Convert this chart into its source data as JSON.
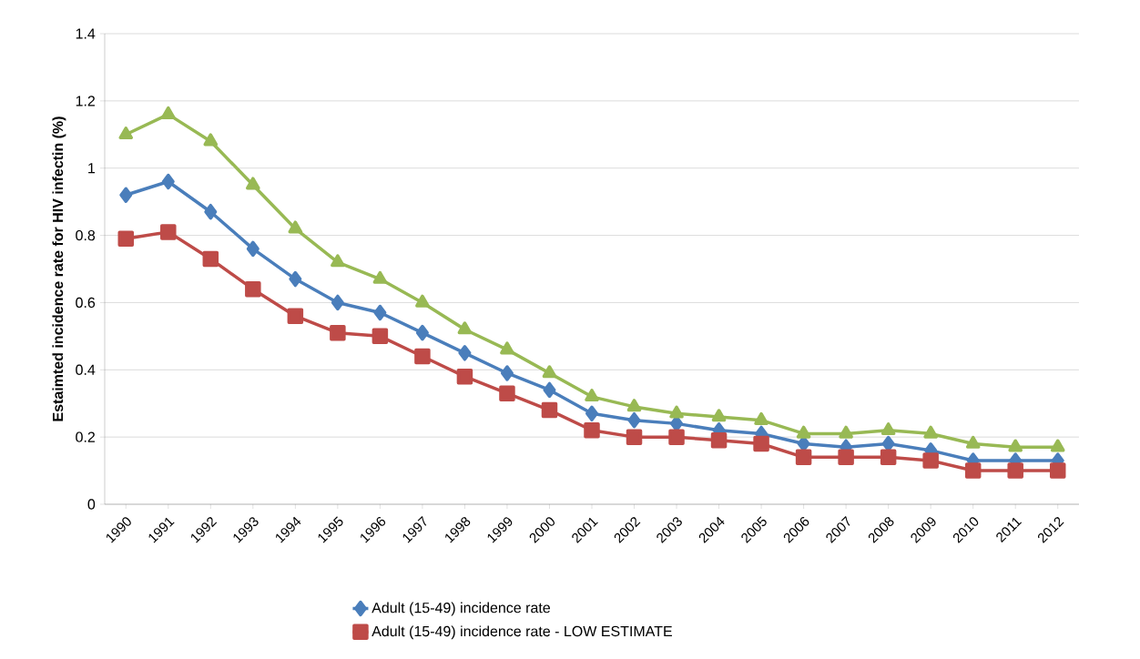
{
  "chart_data": {
    "type": "line",
    "ylabel": "Estaimted incidence rate for HIV infectin (%)",
    "categories": [
      "1990",
      "1991",
      "1992",
      "1993",
      "1994",
      "1995",
      "1996",
      "1997",
      "1998",
      "1999",
      "2000",
      "2001",
      "2002",
      "2003",
      "2004",
      "2005",
      "2006",
      "2007",
      "2008",
      "2009",
      "2010",
      "2011",
      "2012"
    ],
    "series": [
      {
        "name": "Adult (15-49) incidence rate",
        "color": "#4a7ebb",
        "marker": "diamond",
        "values": [
          0.92,
          0.96,
          0.87,
          0.76,
          0.67,
          0.6,
          0.57,
          0.51,
          0.45,
          0.39,
          0.34,
          0.27,
          0.25,
          0.24,
          0.22,
          0.21,
          0.18,
          0.17,
          0.18,
          0.16,
          0.13,
          0.13,
          0.13
        ]
      },
      {
        "name": "Adult (15-49) incidence rate - LOW ESTIMATE",
        "color": "#be4b48",
        "marker": "square",
        "values": [
          0.79,
          0.81,
          0.73,
          0.64,
          0.56,
          0.51,
          0.5,
          0.44,
          0.38,
          0.33,
          0.28,
          0.22,
          0.2,
          0.2,
          0.19,
          0.18,
          0.14,
          0.14,
          0.14,
          0.13,
          0.1,
          0.1,
          0.1
        ]
      },
      {
        "color": "#98b954",
        "marker": "triangle",
        "values": [
          1.1,
          1.16,
          1.08,
          0.95,
          0.82,
          0.72,
          0.67,
          0.6,
          0.52,
          0.46,
          0.39,
          0.32,
          0.29,
          0.27,
          0.26,
          0.25,
          0.21,
          0.21,
          0.22,
          0.21,
          0.18,
          0.17,
          0.17
        ]
      }
    ],
    "ylim": [
      0,
      1.4
    ],
    "yticks": [
      0,
      0.2,
      0.4,
      0.6,
      0.8,
      1,
      1.2,
      1.4
    ],
    "grid": "y",
    "legend": "bottom",
    "line_style": "solid"
  }
}
